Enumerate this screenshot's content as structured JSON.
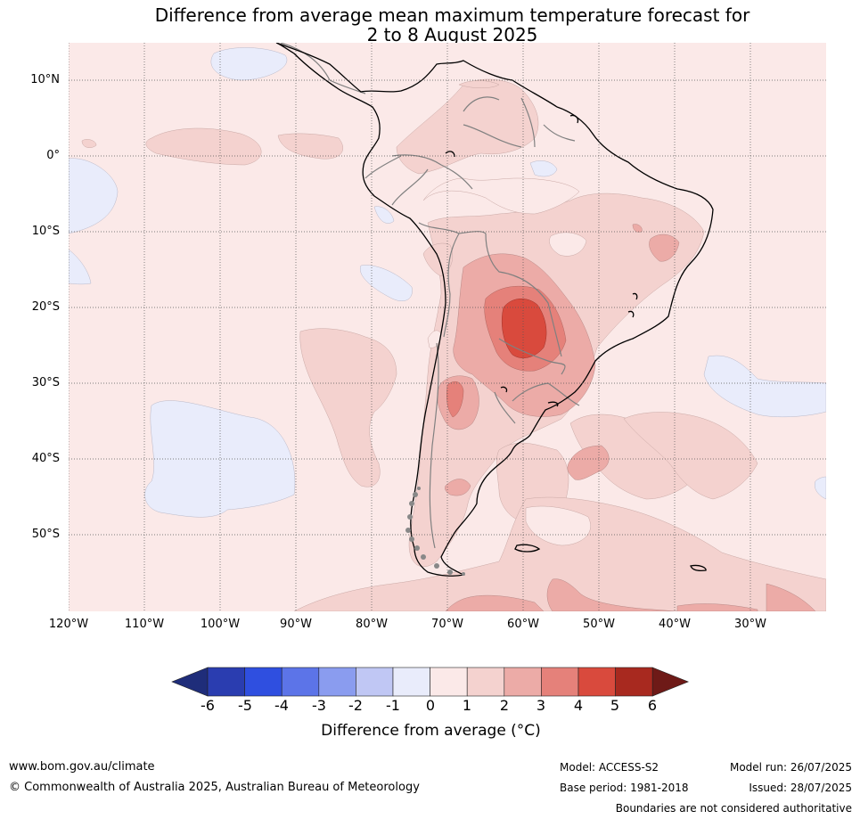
{
  "title": {
    "line1": "Difference from average mean maximum temperature forecast for",
    "line2": "2 to 8 August 2025"
  },
  "map": {
    "lat_labels": [
      "10°N",
      "0°",
      "10°S",
      "20°S",
      "30°S",
      "40°S",
      "50°S"
    ],
    "lon_labels": [
      "120°W",
      "110°W",
      "100°W",
      "90°W",
      "80°W",
      "70°W",
      "60°W",
      "50°W",
      "40°W",
      "30°W"
    ],
    "extent": {
      "lon_min": -120,
      "lon_max": -20,
      "lat_min": -60,
      "lat_max": 15
    },
    "colors": {
      "land_border": "#000000",
      "country_border": "#808080",
      "gridline": "#444444"
    }
  },
  "colorbar": {
    "ticks": [
      "-6",
      "-5",
      "-4",
      "-3",
      "-2",
      "-1",
      "0",
      "1",
      "2",
      "3",
      "4",
      "5",
      "6"
    ],
    "colors": [
      "#1f2d7a",
      "#2a3db0",
      "#2f4fe0",
      "#5c74e8",
      "#8a9cef",
      "#c0c7f4",
      "#e9ecfb",
      "#fbe9e8",
      "#f4d2cf",
      "#ecaba7",
      "#e5817a",
      "#d94a3d",
      "#a8291f",
      "#6e1a17"
    ],
    "label": "Difference from average (°C)"
  },
  "footer": {
    "website": "www.bom.gov.au/climate",
    "copyright": "© Commonwealth of Australia 2025, Australian Bureau of Meteorology",
    "model": "Model: ACCESS-S2",
    "model_run": "Model run: 26/07/2025",
    "base_period": "Base period: 1981-2018",
    "issued": "Issued: 28/07/2025",
    "boundaries_note": "Boundaries are not considered authoritative"
  }
}
